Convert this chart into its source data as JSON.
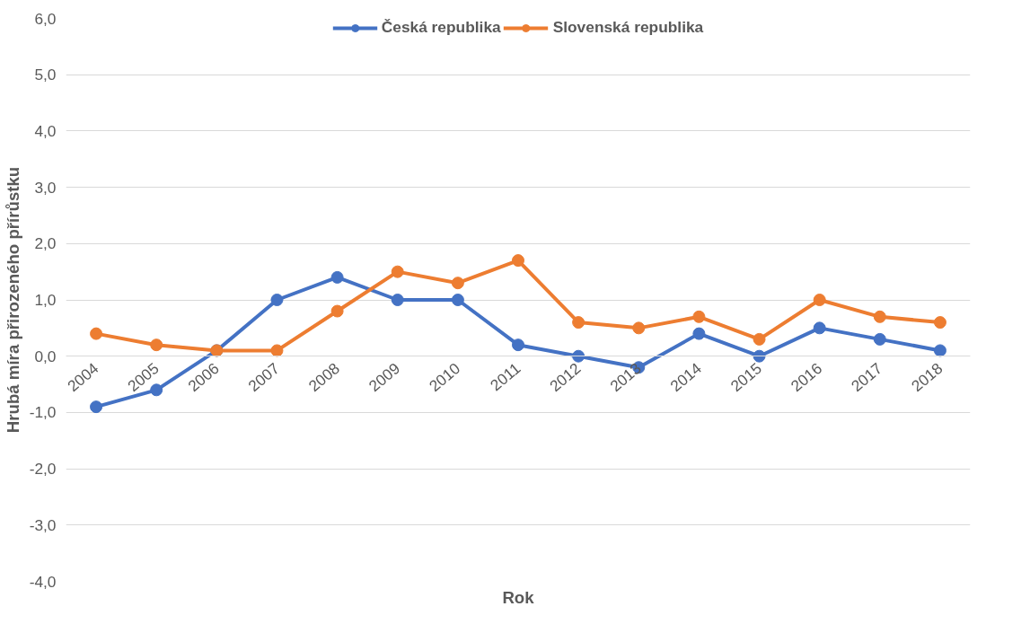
{
  "chart_data": {
    "type": "line",
    "xlabel": "Rok",
    "ylabel": "Hrubá míra přirozeného přírůstku",
    "categories": [
      "2004",
      "2005",
      "2006",
      "2007",
      "2008",
      "2009",
      "2010",
      "2011",
      "2012",
      "2013",
      "2014",
      "2015",
      "2016",
      "2017",
      "2018"
    ],
    "series": [
      {
        "name": "Česká republika",
        "color": "#4472c4",
        "values": [
          -0.9,
          -0.6,
          0.1,
          1.0,
          1.4,
          1.0,
          1.0,
          0.2,
          0.0,
          -0.2,
          0.4,
          0.0,
          0.5,
          0.3,
          0.1
        ]
      },
      {
        "name": "Slovenská republika",
        "color": "#ed7d31",
        "values": [
          0.4,
          0.2,
          0.1,
          0.1,
          0.8,
          1.5,
          1.3,
          1.7,
          0.6,
          0.5,
          0.7,
          0.3,
          1.0,
          0.7,
          0.6
        ]
      }
    ],
    "ylim": [
      -4,
      6
    ],
    "yticks": [
      {
        "value": -4,
        "label": "-4,0"
      },
      {
        "value": -3,
        "label": "-3,0"
      },
      {
        "value": -2,
        "label": "-2,0"
      },
      {
        "value": -1,
        "label": "-1,0"
      },
      {
        "value": 0,
        "label": "0,0"
      },
      {
        "value": 1,
        "label": "1,0"
      },
      {
        "value": 2,
        "label": "2,0"
      },
      {
        "value": 3,
        "label": "3,0"
      },
      {
        "value": 4,
        "label": "4,0"
      },
      {
        "value": 5,
        "label": "5,0"
      },
      {
        "value": 6,
        "label": "6,0"
      }
    ],
    "grid": "y",
    "legend": "top",
    "marker": "circle",
    "line_style": "solid"
  }
}
